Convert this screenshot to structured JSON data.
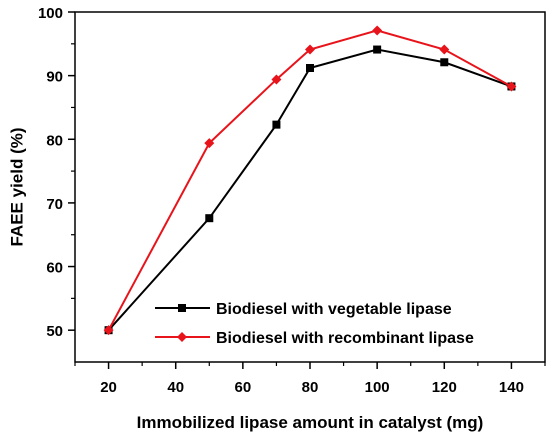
{
  "chart_data": {
    "type": "line",
    "title": "",
    "xlabel": "Immobilized lipase amount in catalyst (mg)",
    "ylabel": "FAEE yield (%)",
    "xlim": [
      10,
      150
    ],
    "ylim": [
      45,
      100
    ],
    "xticks": [
      20,
      40,
      60,
      80,
      100,
      120,
      140
    ],
    "yticks": [
      50,
      60,
      70,
      80,
      90,
      100
    ],
    "grid": false,
    "legend_position": "bottom-right",
    "series": [
      {
        "name": "Biodiesel with vegetable lipase",
        "color": "#000000",
        "marker": "square",
        "x": [
          20,
          50,
          70,
          80,
          100,
          120,
          140
        ],
        "y": [
          50.0,
          67.6,
          82.3,
          91.2,
          94.1,
          92.1,
          88.3
        ]
      },
      {
        "name": "Biodiesel with recombinant lipase",
        "color": "#e8141b",
        "marker": "diamond",
        "x": [
          20,
          50,
          70,
          80,
          100,
          120,
          140
        ],
        "y": [
          50.0,
          79.4,
          89.4,
          94.1,
          97.1,
          94.1,
          88.3
        ]
      }
    ]
  }
}
